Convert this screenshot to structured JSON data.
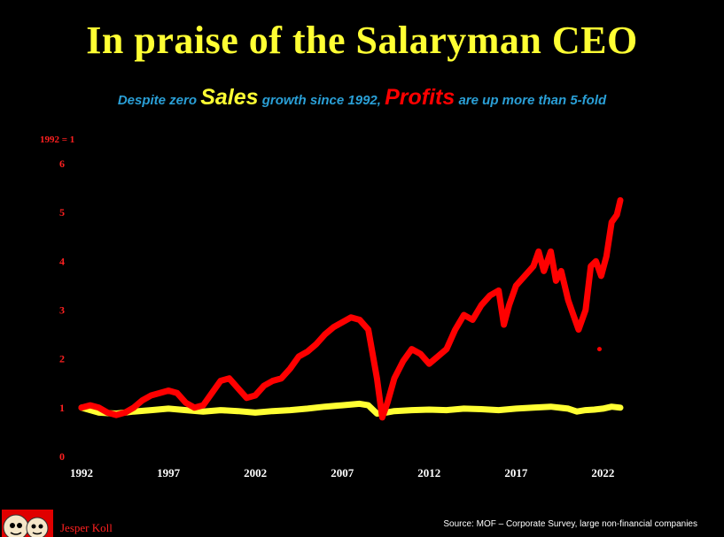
{
  "slide": {
    "title": "In praise of the Salaryman CEO",
    "subtitle": {
      "part1": "Despite zero ",
      "part2": "Sales",
      "part3": " growth since 1992, ",
      "part4": "Profits",
      "part5": " are up more than 5-fold"
    },
    "author": "Jesper Koll",
    "source": "Source: MOF – Corporate Survey, large non-financial companies"
  },
  "colors": {
    "background": "#000000",
    "title": "#ffff33",
    "sales": "#ffff33",
    "profits": "#ff0000",
    "subtitle_blue": "#2a9fd6",
    "axis_red": "#ff2020"
  },
  "logo_icon": "daruma-faces-icon",
  "chart_data": {
    "type": "line",
    "ylabel": "1992 = 1",
    "xlabel": "",
    "ylim": [
      0,
      6
    ],
    "xlim": [
      1992,
      2023
    ],
    "y_ticks": [
      0,
      1,
      2,
      3,
      4,
      5,
      6
    ],
    "x_ticks": [
      1992,
      1997,
      2002,
      2007,
      2012,
      2017,
      2022
    ],
    "x_tick_labels": [
      "1992",
      "1997",
      "2002",
      "2007",
      "2012",
      "2017",
      "2022"
    ],
    "grid": false,
    "legend": "none",
    "series": [
      {
        "label": "Profits",
        "color": "#ff0000",
        "x": [
          1992.0,
          1992.5,
          1993.0,
          1993.5,
          1994.0,
          1994.5,
          1995.0,
          1995.5,
          1996.0,
          1996.5,
          1997.0,
          1997.5,
          1998.0,
          1998.5,
          1999.0,
          1999.5,
          2000.0,
          2000.5,
          2001.0,
          2001.5,
          2002.0,
          2002.5,
          2003.0,
          2003.5,
          2004.0,
          2004.5,
          2005.0,
          2005.5,
          2006.0,
          2006.5,
          2007.0,
          2007.5,
          2008.0,
          2008.5,
          2009.0,
          2009.3,
          2009.6,
          2010.0,
          2010.5,
          2011.0,
          2011.5,
          2012.0,
          2012.5,
          2013.0,
          2013.5,
          2014.0,
          2014.5,
          2015.0,
          2015.5,
          2016.0,
          2016.3,
          2016.6,
          2017.0,
          2017.5,
          2018.0,
          2018.3,
          2018.6,
          2019.0,
          2019.3,
          2019.6,
          2020.0,
          2020.3,
          2020.6,
          2021.0,
          2021.3,
          2021.6,
          2021.9,
          2022.2,
          2022.5,
          2022.8,
          2023.0
        ],
        "y": [
          1.0,
          1.05,
          1.0,
          0.9,
          0.85,
          0.9,
          1.0,
          1.15,
          1.25,
          1.3,
          1.35,
          1.3,
          1.1,
          1.0,
          1.05,
          1.3,
          1.55,
          1.6,
          1.4,
          1.2,
          1.25,
          1.45,
          1.55,
          1.6,
          1.8,
          2.05,
          2.15,
          2.3,
          2.5,
          2.65,
          2.75,
          2.85,
          2.8,
          2.6,
          1.6,
          0.8,
          1.1,
          1.6,
          1.95,
          2.2,
          2.1,
          1.9,
          2.05,
          2.2,
          2.6,
          2.9,
          2.8,
          3.1,
          3.3,
          3.4,
          2.7,
          3.1,
          3.5,
          3.7,
          3.9,
          4.2,
          3.8,
          4.2,
          3.6,
          3.8,
          3.2,
          2.9,
          2.6,
          3.0,
          3.9,
          4.0,
          3.7,
          4.1,
          4.8,
          4.95,
          5.25
        ]
      },
      {
        "label": "Sales",
        "color": "#ffff33",
        "x": [
          1992.0,
          1993.0,
          1994.0,
          1995.0,
          1996.0,
          1997.0,
          1998.0,
          1999.0,
          2000.0,
          2001.0,
          2002.0,
          2003.0,
          2004.0,
          2005.0,
          2006.0,
          2007.0,
          2008.0,
          2008.5,
          2009.0,
          2009.5,
          2010.0,
          2011.0,
          2012.0,
          2013.0,
          2014.0,
          2015.0,
          2016.0,
          2017.0,
          2018.0,
          2019.0,
          2020.0,
          2020.5,
          2021.0,
          2021.5,
          2022.0,
          2022.5,
          2023.0
        ],
        "y": [
          1.0,
          0.9,
          0.88,
          0.92,
          0.95,
          0.98,
          0.95,
          0.92,
          0.95,
          0.93,
          0.9,
          0.93,
          0.95,
          0.98,
          1.02,
          1.05,
          1.08,
          1.05,
          0.88,
          0.9,
          0.93,
          0.95,
          0.96,
          0.95,
          0.98,
          0.97,
          0.95,
          0.98,
          1.0,
          1.02,
          0.98,
          0.92,
          0.95,
          0.96,
          0.98,
          1.02,
          1.0
        ]
      }
    ],
    "annotations": [
      {
        "type": "dot",
        "x": 2021.8,
        "y": 2.2,
        "color": "#ff0000"
      }
    ]
  }
}
